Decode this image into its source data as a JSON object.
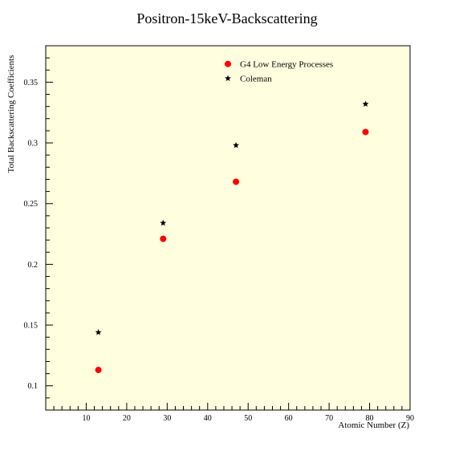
{
  "chart_data": {
    "type": "scatter",
    "title": "Positron-15keV-Backscattering",
    "xlabel": "Atomic Number (Z)",
    "ylabel": "Total Backscattering Coefficients",
    "xlim": [
      0,
      90
    ],
    "ylim": [
      0.08,
      0.38
    ],
    "x_ticks": [
      10,
      20,
      30,
      40,
      50,
      60,
      70,
      80,
      90
    ],
    "y_ticks": [
      0.1,
      0.15,
      0.2,
      0.25,
      0.3,
      0.35
    ],
    "x_tick_labels": [
      "10",
      "20",
      "30",
      "40",
      "50",
      "60",
      "70",
      "80",
      "90"
    ],
    "y_tick_labels": [
      "0.1",
      "0.15",
      "0.2",
      "0.25",
      "0.3",
      "0.35"
    ],
    "grid": false,
    "legend_position": "top-right",
    "background": "#ffffe0",
    "series": [
      {
        "name": "G4 Low Energy Processes",
        "marker": "circle",
        "color": "#ff0000",
        "x": [
          13,
          29,
          47,
          79
        ],
        "y": [
          0.113,
          0.221,
          0.268,
          0.309
        ]
      },
      {
        "name": "Coleman",
        "marker": "star",
        "color": "#000000",
        "x": [
          13,
          29,
          47,
          79
        ],
        "y": [
          0.144,
          0.234,
          0.298,
          0.332
        ]
      }
    ]
  }
}
